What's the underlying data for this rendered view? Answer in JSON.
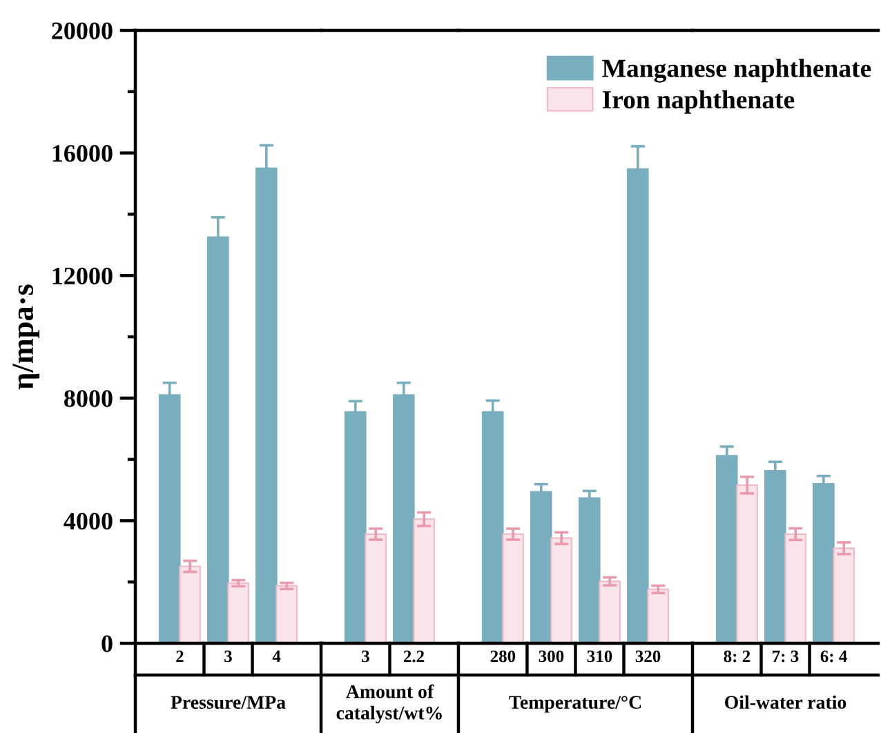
{
  "chart_data": [
    {
      "type": "bar",
      "xlabel": "Pressure/MPa",
      "ylabel": "η/mpa·s",
      "categories": [
        "2",
        "3",
        "4"
      ],
      "series": [
        {
          "color": "#78aebe",
          "values": [
            8100,
            13250,
            15500
          ],
          "errors": [
            400,
            650,
            750
          ]
        },
        {
          "color": "#f9e4e9",
          "values": [
            2510,
            1960,
            1870
          ],
          "errors": [
            180,
            100,
            100
          ]
        }
      ],
      "ylim": [
        0,
        20000
      ],
      "yticks": [
        0,
        {
          "value": 2000,
          "label": null
        },
        4000,
        {
          "value": 6000,
          "label": null
        },
        8000,
        {
          "value": 10000,
          "label": null
        },
        12000,
        {
          "value": 14000,
          "label": null
        },
        16000,
        {
          "value": 18000,
          "label": null
        },
        20000
      ]
    },
    {
      "type": "bar",
      "xlabel": "Amount of\ncatalyst/wt%",
      "categories": [
        "3",
        "2.2"
      ],
      "series": [
        {
          "color": "#78aebe",
          "values": [
            7550,
            8100
          ],
          "errors": [
            350,
            400
          ]
        },
        {
          "color": "#f9e4e9",
          "values": [
            3560,
            4050
          ],
          "errors": [
            180,
            220
          ]
        }
      ],
      "ylim": [
        0,
        20000
      ],
      "tick_labels": "x"
    },
    {
      "type": "bar",
      "xlabel": "Temperature/°C",
      "categories": [
        "280",
        "300",
        "310",
        "320"
      ],
      "series": [
        {
          "name": "Manganese naphthenate",
          "color": "#78aebe",
          "values": [
            7550,
            4940,
            4740,
            15470
          ],
          "errors": [
            370,
            250,
            230,
            750
          ]
        },
        {
          "name": "Iron naphthenate",
          "color": "#f9e4e9",
          "values": [
            3560,
            3430,
            2020,
            1760
          ],
          "errors": [
            180,
            190,
            130,
            120
          ]
        }
      ],
      "ylim": [
        0,
        20000
      ],
      "tick_labels": "x",
      "legend": "top right"
    },
    {
      "type": "bar",
      "xlabel": "Oil-water ratio",
      "categories": [
        "8: 2",
        "7: 3",
        "6: 4"
      ],
      "series": [
        {
          "color": "#78aebe",
          "values": [
            6120,
            5630,
            5200
          ],
          "errors": [
            300,
            290,
            260
          ]
        },
        {
          "color": "#f9e4e9",
          "values": [
            5160,
            3560,
            3100
          ],
          "errors": [
            270,
            190,
            190
          ]
        }
      ],
      "ylim": [
        0,
        20000
      ],
      "tick_labels": "x"
    }
  ]
}
